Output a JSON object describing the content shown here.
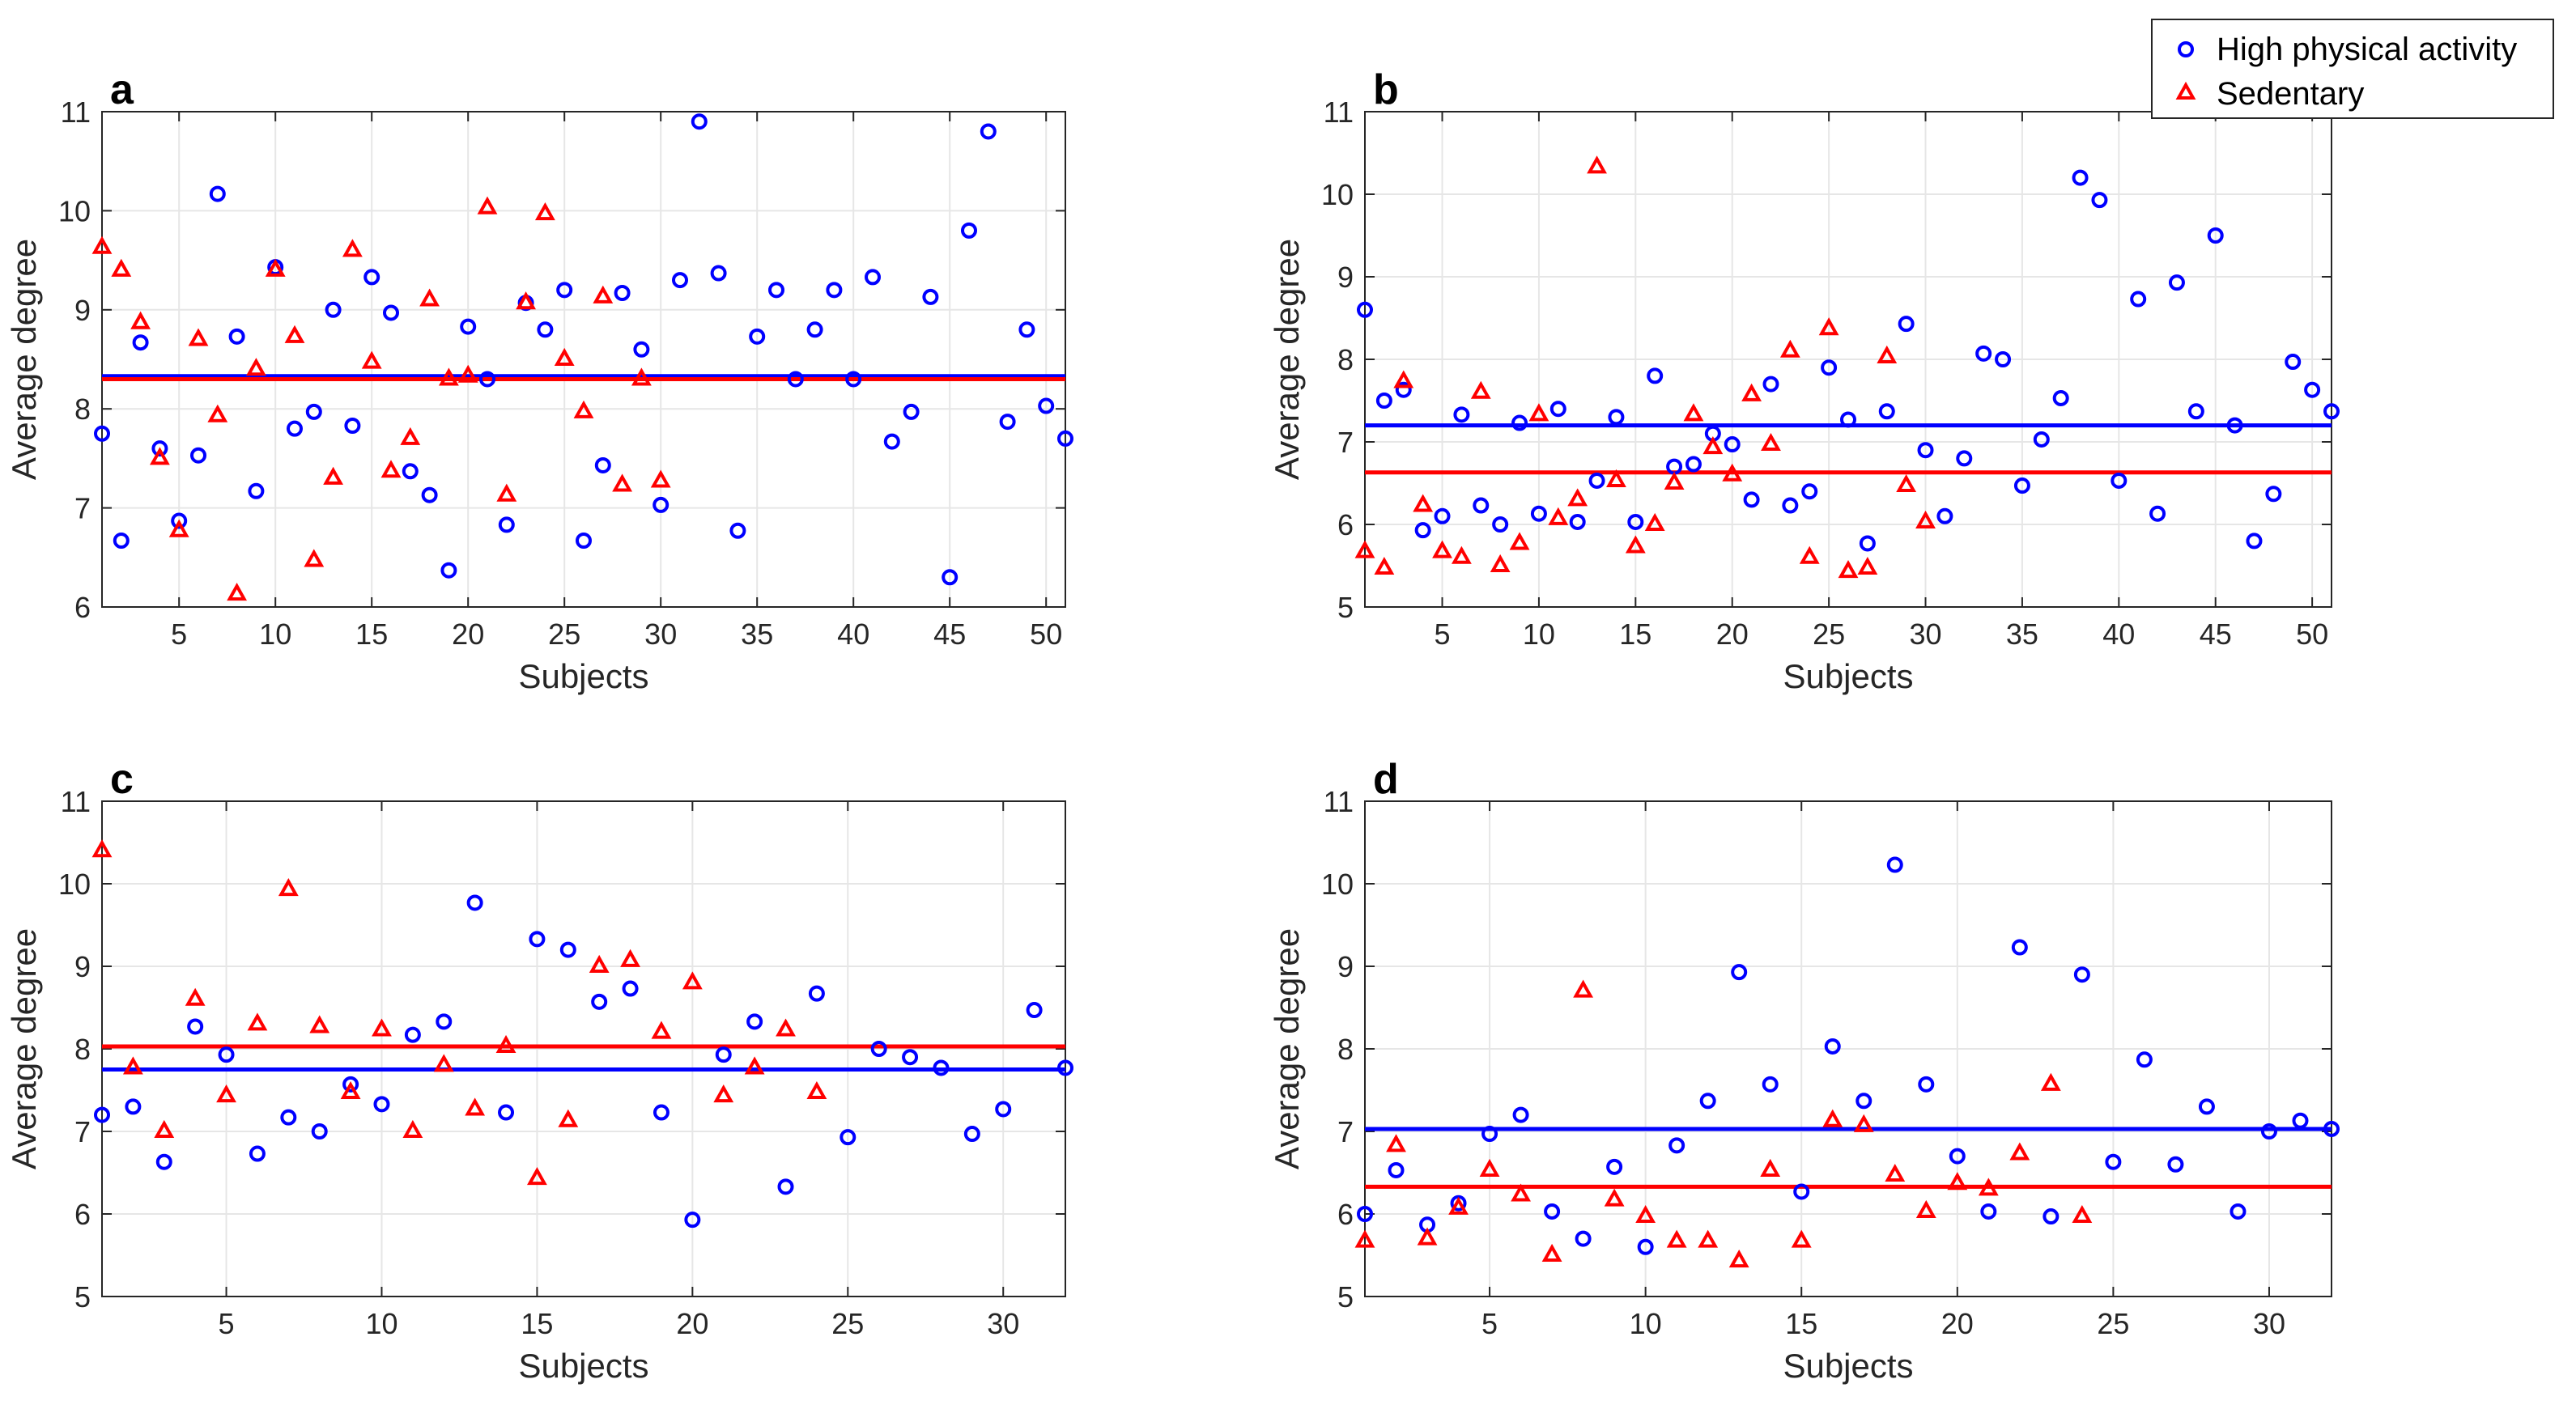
{
  "legend": {
    "high_label": "High physical activity",
    "sed_label": "Sedentary",
    "high_color": "#0000ff",
    "sed_color": "#ff0000",
    "high_marker": "circle-marker",
    "sed_marker": "triangle-marker",
    "placement": "top-right"
  },
  "chart_data": [
    {
      "type": "scatter",
      "panel": "a",
      "xlabel": "Subjects",
      "ylabel": "Average degree",
      "xlim": [
        1,
        51
      ],
      "ylim": [
        6,
        11
      ],
      "xticks": [
        5,
        10,
        15,
        20,
        25,
        30,
        35,
        40,
        45,
        50
      ],
      "yticks": [
        6,
        7,
        8,
        9,
        10,
        11
      ],
      "grid": true,
      "series": [
        {
          "name": "High physical activity",
          "mean": 8.33,
          "values": [
            7.75,
            6.67,
            8.67,
            7.6,
            6.87,
            7.53,
            10.17,
            8.73,
            7.17,
            9.43,
            7.8,
            7.97,
            9.0,
            7.83,
            9.33,
            8.97,
            7.37,
            7.13,
            6.37,
            8.83,
            8.3,
            6.83,
            9.07,
            8.8,
            9.2,
            6.67,
            7.43,
            9.17,
            8.6,
            7.03,
            9.3,
            10.9,
            9.37,
            6.77,
            8.73,
            9.2,
            8.3,
            8.8,
            9.2,
            8.3,
            9.33,
            7.67,
            7.97,
            9.13,
            6.3,
            9.8,
            10.8,
            7.87,
            8.8,
            8.03,
            7.7
          ]
        },
        {
          "name": "Sedentary",
          "mean": 8.3,
          "values": [
            9.63,
            9.4,
            8.87,
            7.5,
            6.77,
            8.7,
            7.93,
            6.13,
            8.4,
            9.4,
            8.73,
            6.47,
            7.3,
            9.6,
            8.47,
            7.37,
            7.7,
            9.1,
            8.3,
            8.33,
            10.03,
            7.13,
            9.07,
            9.97,
            8.5,
            7.97,
            9.13,
            7.23,
            8.3,
            7.27
          ]
        }
      ]
    },
    {
      "type": "scatter",
      "panel": "b",
      "xlabel": "Subjects",
      "ylabel": "Average degree",
      "xlim": [
        1,
        51
      ],
      "ylim": [
        5,
        11
      ],
      "xticks": [
        5,
        10,
        15,
        20,
        25,
        30,
        35,
        40,
        45,
        50
      ],
      "yticks": [
        5,
        6,
        7,
        8,
        9,
        10,
        11
      ],
      "grid": true,
      "series": [
        {
          "name": "High physical activity",
          "mean": 7.2,
          "values": [
            8.6,
            7.5,
            7.63,
            5.93,
            6.1,
            7.33,
            6.23,
            6.0,
            7.23,
            6.13,
            7.4,
            6.03,
            6.53,
            7.3,
            6.03,
            7.8,
            6.7,
            6.73,
            7.1,
            6.97,
            6.3,
            7.7,
            6.23,
            6.4,
            7.9,
            7.27,
            5.77,
            7.37,
            8.43,
            6.9,
            6.1,
            6.8,
            8.07,
            8.0,
            6.47,
            7.03,
            7.53,
            10.2,
            9.93,
            6.53,
            8.73,
            6.13,
            8.93,
            7.37,
            9.5,
            7.2,
            5.8,
            6.37,
            7.97,
            7.63,
            7.37
          ]
        },
        {
          "name": "Sedentary",
          "mean": 6.63,
          "values": [
            5.67,
            5.47,
            7.73,
            6.23,
            5.67,
            5.6,
            7.6,
            5.5,
            5.77,
            7.33,
            6.07,
            6.3,
            10.33,
            6.53,
            5.73,
            6.0,
            6.5,
            7.33,
            6.93,
            6.6,
            7.57,
            6.97,
            8.1,
            5.6,
            8.37,
            5.43,
            5.47,
            8.03,
            6.47,
            6.03
          ]
        }
      ]
    },
    {
      "type": "scatter",
      "panel": "c",
      "xlabel": "Subjects",
      "ylabel": "Average degree",
      "xlim": [
        1,
        32
      ],
      "ylim": [
        5,
        11
      ],
      "xticks": [
        5,
        10,
        15,
        20,
        25,
        30
      ],
      "yticks": [
        5,
        6,
        7,
        8,
        9,
        10,
        11
      ],
      "grid": true,
      "series": [
        {
          "name": "High physical activity",
          "mean": 7.75,
          "values": [
            7.2,
            7.3,
            6.63,
            8.27,
            7.93,
            6.73,
            7.17,
            7.0,
            7.57,
            7.33,
            8.17,
            8.33,
            9.77,
            7.23,
            9.33,
            9.2,
            8.57,
            8.73,
            7.23,
            5.93,
            7.93,
            8.33,
            6.33,
            8.67,
            6.93,
            8.0,
            7.9,
            7.77,
            6.97,
            7.27,
            8.47,
            7.77
          ]
        },
        {
          "name": "Sedentary",
          "mean": 8.03,
          "values": [
            10.4,
            7.77,
            7.0,
            8.6,
            7.43,
            8.3,
            9.93,
            8.27,
            7.47,
            8.23,
            7.0,
            7.8,
            7.27,
            8.03,
            6.43,
            7.13,
            9.0,
            9.07,
            8.2,
            8.8,
            7.43,
            7.77,
            8.23,
            7.47
          ]
        }
      ]
    },
    {
      "type": "scatter",
      "panel": "d",
      "xlabel": "Subjects",
      "ylabel": "Average degree",
      "xlim": [
        1,
        32
      ],
      "ylim": [
        5,
        11
      ],
      "xticks": [
        5,
        10,
        15,
        20,
        25,
        30
      ],
      "yticks": [
        5,
        6,
        7,
        8,
        9,
        10,
        11
      ],
      "grid": true,
      "series": [
        {
          "name": "High physical activity",
          "mean": 7.03,
          "values": [
            6.0,
            6.53,
            5.87,
            6.13,
            6.97,
            7.2,
            6.03,
            5.7,
            6.57,
            5.6,
            6.83,
            7.37,
            8.93,
            7.57,
            6.27,
            8.03,
            7.37,
            10.23,
            7.57,
            6.7,
            6.03,
            9.23,
            5.97,
            8.9,
            6.63,
            7.87,
            6.6,
            7.3,
            6.03,
            7.0,
            7.13,
            7.03
          ]
        },
        {
          "name": "Sedentary",
          "mean": 6.33,
          "values": [
            5.67,
            6.83,
            5.7,
            6.07,
            6.53,
            6.23,
            5.5,
            8.7,
            6.17,
            5.97,
            5.67,
            5.67,
            5.43,
            6.53,
            5.67,
            7.13,
            7.07,
            6.47,
            6.03,
            6.37,
            6.3,
            6.73,
            7.57,
            5.97
          ]
        }
      ]
    }
  ]
}
